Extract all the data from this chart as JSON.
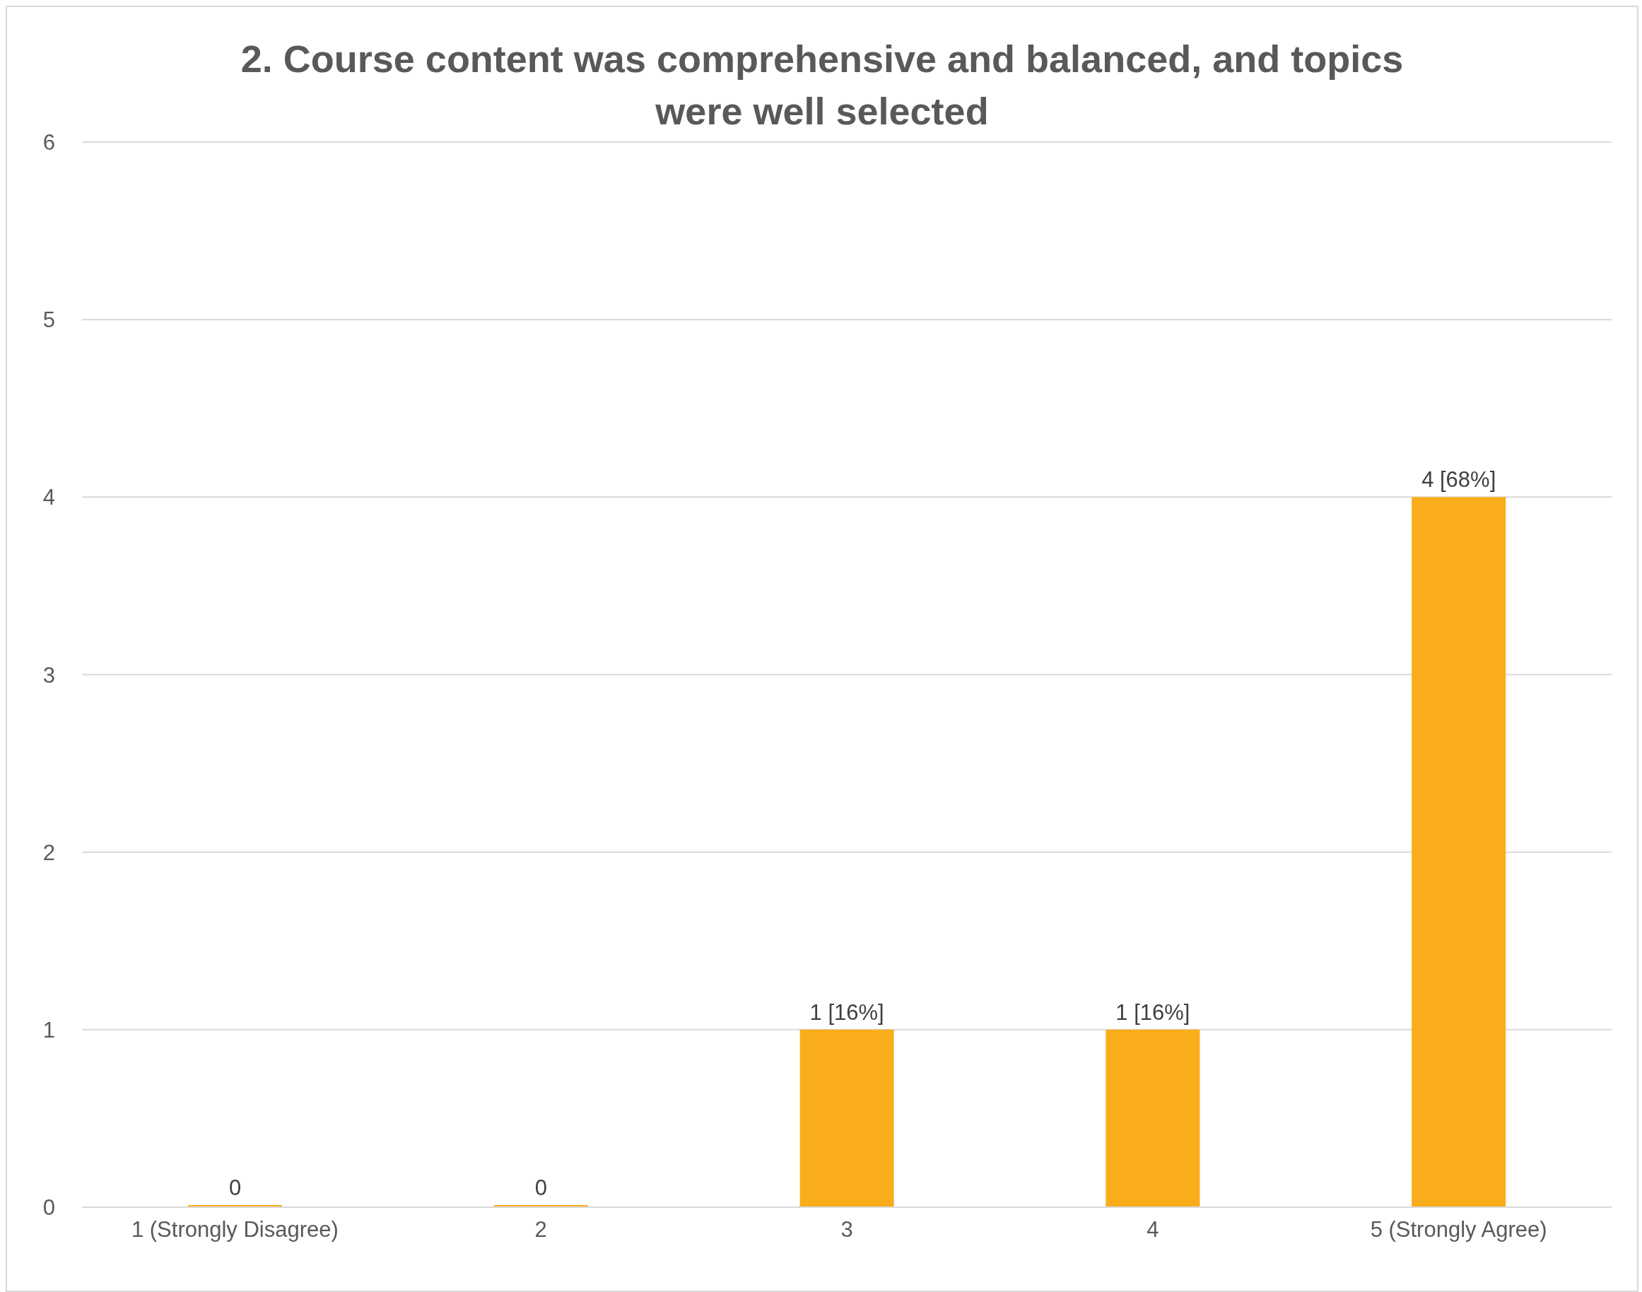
{
  "chart_data": {
    "type": "bar",
    "title": "2. Course content was comprehensive and balanced, and topics were well selected",
    "categories": [
      "1 (Strongly Disagree)",
      "2",
      "3",
      "4",
      "5 (Strongly Agree)"
    ],
    "values": [
      0,
      0,
      1,
      1,
      4
    ],
    "color": "#f9ad1b",
    "value_labels": [
      "0",
      "0",
      "1 [16%]",
      "1 [16%]",
      "4 [68%]"
    ],
    "ylim": [
      0,
      6
    ],
    "yticks": [
      0,
      1,
      2,
      3,
      4,
      5,
      6
    ],
    "grid": "y",
    "legend": false
  }
}
